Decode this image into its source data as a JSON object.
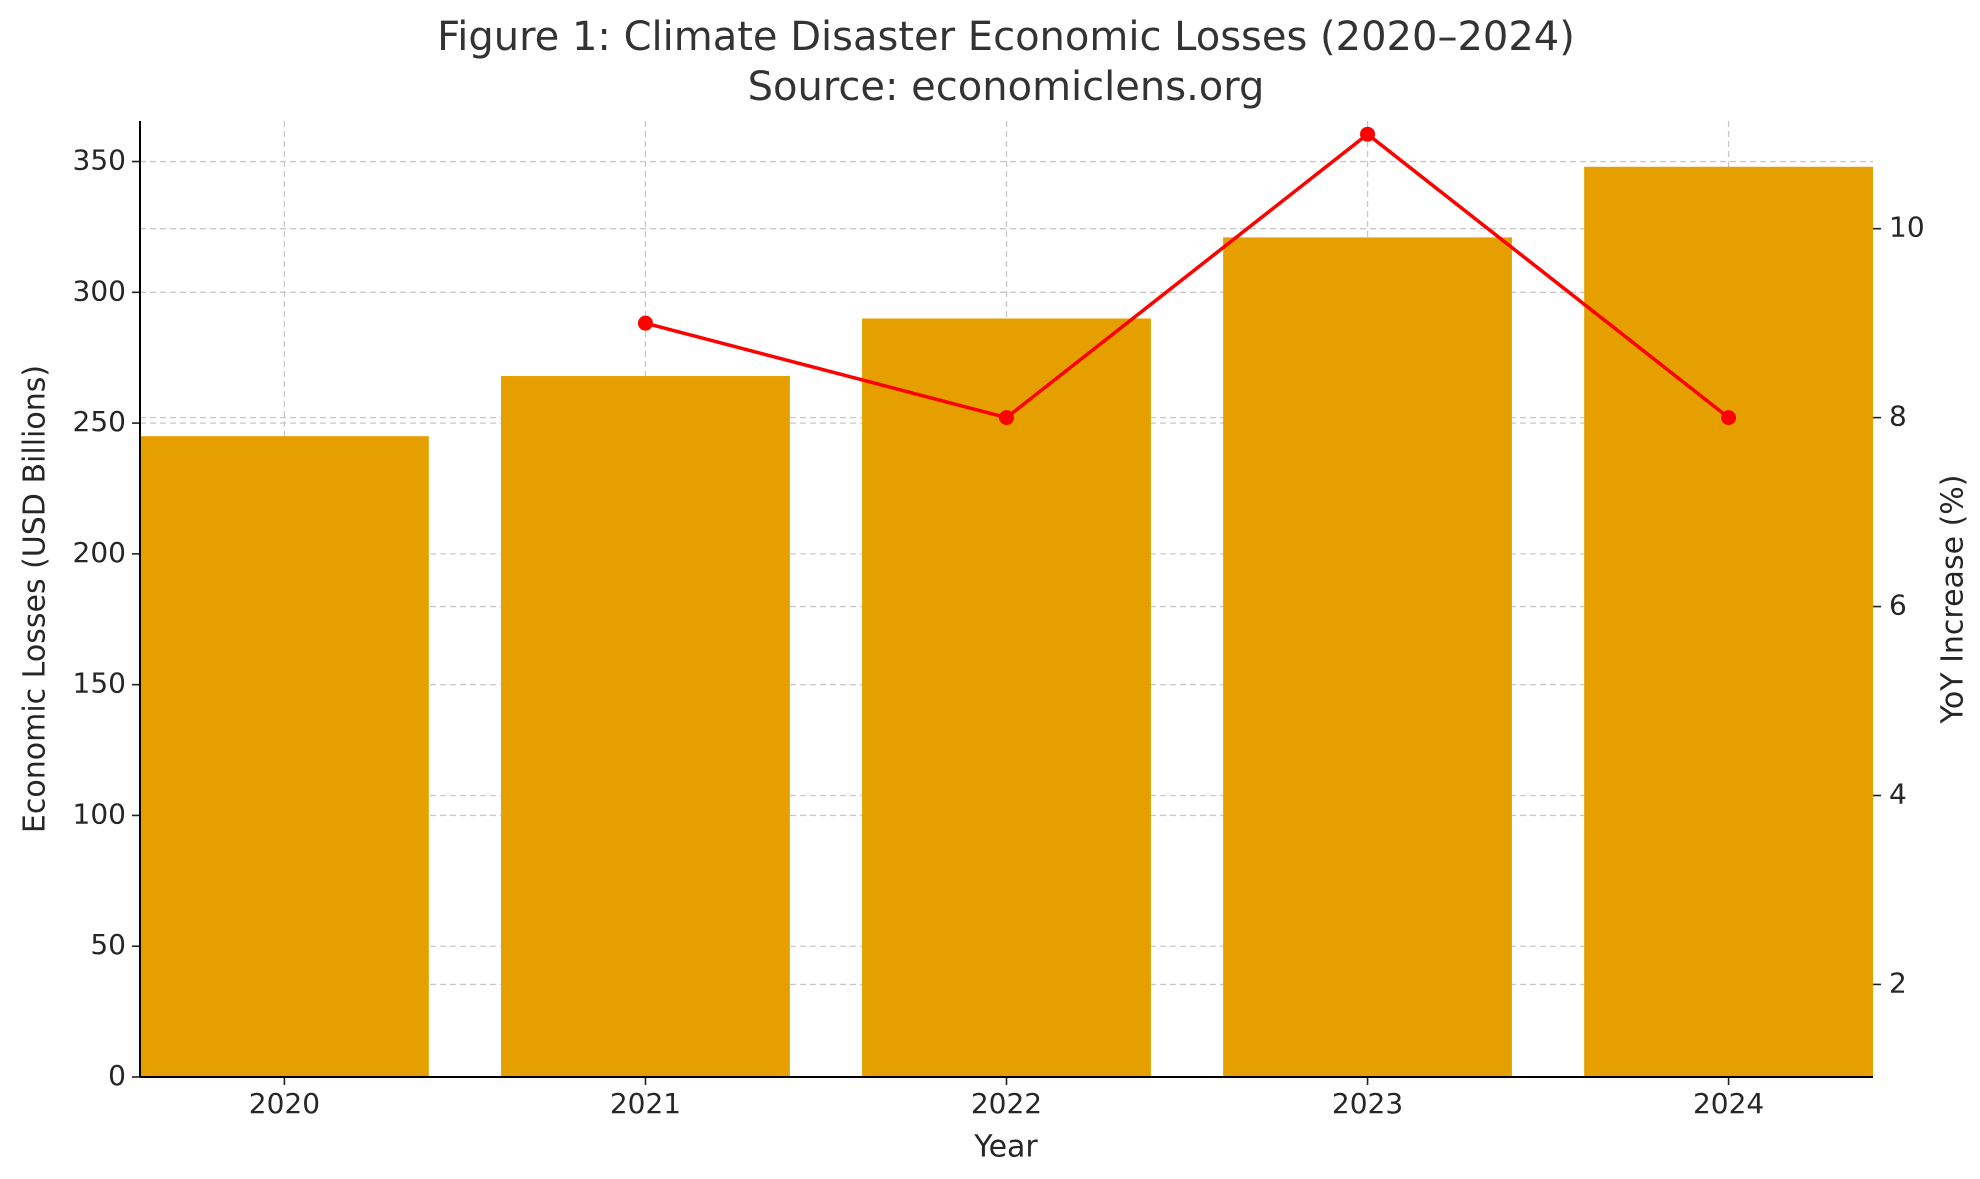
{
  "chart_data": {
    "type": "bar",
    "title": "Figure 1: Climate Disaster Economic Losses (2020–2024)",
    "subtitle": "Source: economiclens.org",
    "x_label": "Year",
    "y_label": "Economic Losses (USD Billions)",
    "y2_label": "YoY Increase (%)",
    "categories": [
      "2020",
      "2021",
      "2022",
      "2023",
      "2024"
    ],
    "series": [
      {
        "type": "bar",
        "color": "#e5a000",
        "values": [
          245,
          268,
          290,
          321,
          348
        ]
      },
      {
        "type": "line",
        "color": "#ff0000",
        "axis": "y2",
        "values": [
          null,
          9,
          8,
          11,
          8
        ]
      }
    ],
    "ylim": [
      0,
      365.5
    ],
    "yticks": [
      0,
      50,
      100,
      150,
      200,
      250,
      300,
      350
    ],
    "y2lim": [
      1.02,
      11.14
    ],
    "y2ticks": [
      2,
      4,
      6,
      8,
      10
    ],
    "grid": true
  }
}
